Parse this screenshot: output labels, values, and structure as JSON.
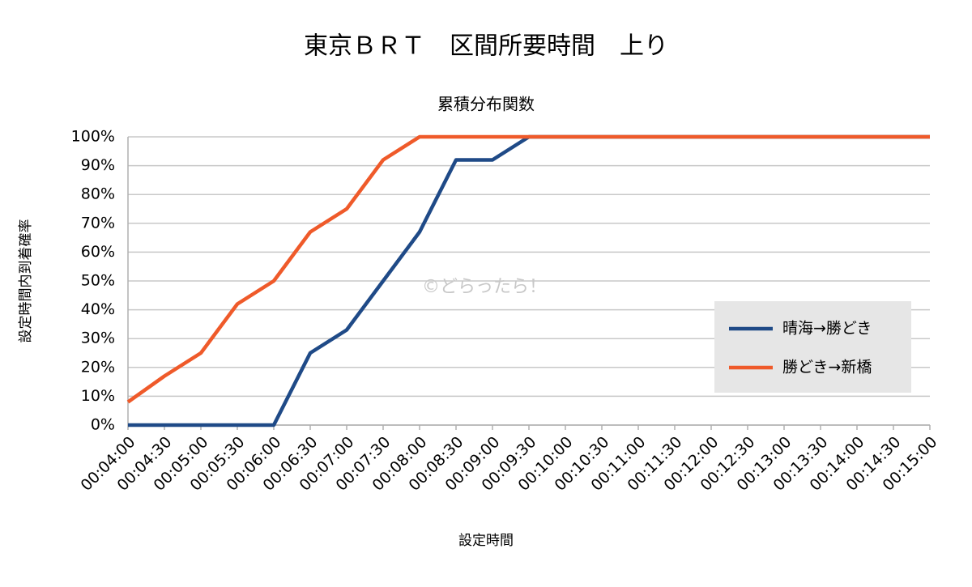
{
  "chart_data": {
    "type": "line",
    "title": "東京ＢＲＴ　区間所要時間　上り",
    "subtitle": "累積分布関数",
    "x_label": "設定時間",
    "y_label": "設定時間内到着確率",
    "annotation": "©どらったら！",
    "categories": [
      "00:04:00",
      "00:04:30",
      "00:05:00",
      "00:05:30",
      "00:06:00",
      "00:06:30",
      "00:07:00",
      "00:07:30",
      "00:08:00",
      "00:08:30",
      "00:09:00",
      "00:09:30",
      "00:10:00",
      "00:10:30",
      "00:11:00",
      "00:11:30",
      "00:12:00",
      "00:12:30",
      "00:13:00",
      "00:13:30",
      "00:14:00",
      "00:14:30",
      "00:15:00"
    ],
    "series": [
      {
        "name": "晴海→勝どき",
        "color": "#1f4a87",
        "values": [
          0,
          0,
          0,
          0,
          0,
          25,
          33,
          50,
          67,
          92,
          92,
          100,
          100,
          100,
          100,
          100,
          100,
          100,
          100,
          100,
          100,
          100,
          100
        ]
      },
      {
        "name": "勝どき→新橋",
        "color": "#ef5a2a",
        "values": [
          8,
          17,
          25,
          42,
          50,
          67,
          75,
          92,
          100,
          100,
          100,
          100,
          100,
          100,
          100,
          100,
          100,
          100,
          100,
          100,
          100,
          100,
          100
        ]
      }
    ],
    "ylim": [
      0,
      100
    ],
    "yticks": [
      {
        "value": 0,
        "label": "0%"
      },
      {
        "value": 10,
        "label": "10%"
      },
      {
        "value": 20,
        "label": "20%"
      },
      {
        "value": 30,
        "label": "30%"
      },
      {
        "value": 40,
        "label": "40%"
      },
      {
        "value": 50,
        "label": "50%"
      },
      {
        "value": 60,
        "label": "60%"
      },
      {
        "value": 70,
        "label": "70%"
      },
      {
        "value": 80,
        "label": "80%"
      },
      {
        "value": 90,
        "label": "90%"
      },
      {
        "value": 100,
        "label": "100%"
      }
    ],
    "grid": true,
    "legend": "right"
  }
}
